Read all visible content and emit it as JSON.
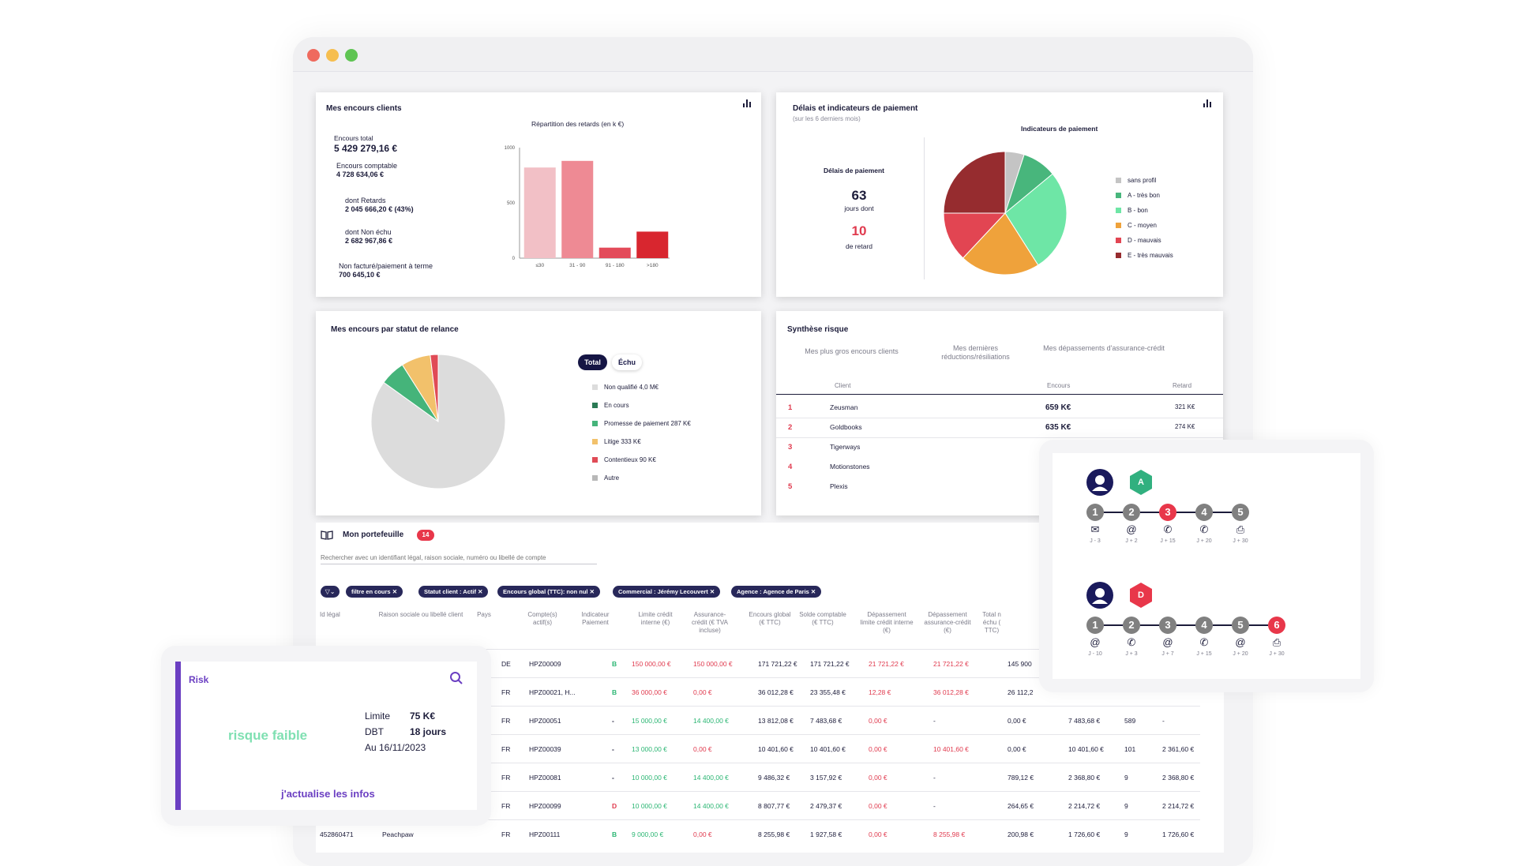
{
  "window": {
    "dot_colors": [
      "#ef6a5e",
      "#f6be4f",
      "#5fc453"
    ]
  },
  "encours": {
    "title": "Mes encours clients",
    "total_label": "Encours total",
    "total_value": "5 429 279,16 €",
    "comptable_label": "Encours comptable",
    "comptable_value": "4 728 634,06 €",
    "retards_label": "dont Retards",
    "retards_value": "2 045 666,20 € (43%)",
    "nonechu_label": "dont Non échu",
    "nonechu_value": "2 682 967,86 €",
    "nonfacture_label": "Non facturé/paiement à terme",
    "nonfacture_value": "700 645,10 €",
    "chart_title": "Répartition des retards (en k €)"
  },
  "delais": {
    "title": "Délais et indicateurs de paiement",
    "subtitle": "(sur les 6 derniers mois)",
    "left_title": "Délais de paiement",
    "days_value": "63",
    "days_label": "jours dont",
    "late_value": "10",
    "late_label": "de retard",
    "pie_title": "Indicateurs de paiement"
  },
  "relance": {
    "title": "Mes encours par statut de relance",
    "toggle_total": "Total",
    "toggle_echu": "Échu"
  },
  "synthese": {
    "title": "Synthèse risque",
    "tab1": "Mes plus gros encours clients",
    "tab2": "Mes dernières réductions/résiliations",
    "tab3": "Mes dépassements d'assurance-crédit",
    "col_client": "Client",
    "col_encours": "Encours",
    "col_retard": "Retard",
    "rows": [
      {
        "rank": "1",
        "client": "Zeusman",
        "encours": "659 K€",
        "retard": "321 K€"
      },
      {
        "rank": "2",
        "client": "Goldbooks",
        "encours": "635 K€",
        "retard": "274 K€"
      },
      {
        "rank": "3",
        "client": "Tigerways",
        "encours": "",
        "retard": ""
      },
      {
        "rank": "4",
        "client": "Motionstones",
        "encours": "",
        "retard": ""
      },
      {
        "rank": "5",
        "client": "Plexis",
        "encours": "",
        "retard": ""
      }
    ]
  },
  "portefeuille": {
    "title": "Mon portefeuille",
    "count": "14",
    "search_placeholder": "Rechercher avec un identifiant légal, raison sociale, numéro ou libellé de compte",
    "filters": [
      "filtre en cours",
      "Statut client : Actif",
      "Encours global (TTC): non nul",
      "Commercial : Jérémy Lecouvert",
      "Agence : Agence de Paris"
    ],
    "headers": [
      "Id légal",
      "Raison sociale ou libellé client",
      "Pays",
      "Compte(s) actif(s)",
      "Indicateur Paiement",
      "Limite crédit interne (€)",
      "Assurance-crédit (€ TVA incluse)",
      "Encours global (€ TTC)",
      "Solde comptable (€ TTC)",
      "Dépassement limite crédit interne (€)",
      "Dépassement assurance-crédit (€)",
      "Total n échu ( TTC)"
    ],
    "rows": [
      {
        "id": "",
        "name": "",
        "pays": "DE",
        "compte": "HPZ00009",
        "ind": "B",
        "limite": "150 000,00 €",
        "assur": "150 000,00 €",
        "encours": "171 721,22 €",
        "solde": "171 721,22 €",
        "dep1": "21 721,22 €",
        "dep2": "21 721,22 €",
        "total": "145 900",
        "c13": "",
        "c14": "",
        "c15": ""
      },
      {
        "id": "",
        "name": "",
        "pays": "FR",
        "compte": "HPZ00021, H...",
        "ind": "B",
        "limite": "36 000,00 €",
        "assur": "0,00 €",
        "encours": "36 012,28 €",
        "solde": "23 355,48 €",
        "dep1": "12,28 €",
        "dep2": "36 012,28 €",
        "total": "26 112,2",
        "c13": "",
        "c14": "",
        "c15": ""
      },
      {
        "id": "",
        "name": "",
        "pays": "FR",
        "compte": "HPZ00051",
        "ind": "-",
        "limite": "15 000,00 €",
        "assur": "14 400,00 €",
        "encours": "13 812,08 €",
        "solde": "7 483,68 €",
        "dep1": "0,00 €",
        "dep2": "-",
        "total": "0,00 €",
        "c13": "7 483,68 €",
        "c14": "589",
        "c15": "-"
      },
      {
        "id": "",
        "name": "",
        "pays": "FR",
        "compte": "HPZ00039",
        "ind": "-",
        "limite": "13 000,00 €",
        "assur": "0,00 €",
        "encours": "10 401,60 €",
        "solde": "10 401,60 €",
        "dep1": "0,00 €",
        "dep2": "10 401,60 €",
        "total": "0,00 €",
        "c13": "10 401,60 €",
        "c14": "101",
        "c15": "2 361,60 €"
      },
      {
        "id": "",
        "name": "",
        "pays": "FR",
        "compte": "HPZ00081",
        "ind": "-",
        "limite": "10 000,00 €",
        "assur": "14 400,00 €",
        "encours": "9 486,32 €",
        "solde": "3 157,92 €",
        "dep1": "0,00 €",
        "dep2": "-",
        "total": "789,12 €",
        "c13": "2 368,80 €",
        "c14": "9",
        "c15": "2 368,80 €"
      },
      {
        "id": "",
        "name": "",
        "pays": "FR",
        "compte": "HPZ00099",
        "ind": "D",
        "limite": "10 000,00 €",
        "assur": "14 400,00 €",
        "encours": "8 807,77 €",
        "solde": "2 479,37 €",
        "dep1": "0,00 €",
        "dep2": "-",
        "total": "264,65 €",
        "c13": "2 214,72 €",
        "c14": "9",
        "c15": "2 214,72 €"
      },
      {
        "id": "452860471",
        "name": "Peachpaw",
        "pays": "FR",
        "compte": "HPZ00111",
        "ind": "B",
        "limite": "9 000,00 €",
        "assur": "0,00 €",
        "encours": "8 255,98 €",
        "solde": "1 927,58 €",
        "dep1": "0,00 €",
        "dep2": "8 255,98 €",
        "total": "200,98 €",
        "c13": "1 726,60 €",
        "c14": "9",
        "c15": "1 726,60 €"
      }
    ]
  },
  "risk": {
    "title": "Risk",
    "level": "risque faible",
    "limite_label": "Limite",
    "limite_value": "75 K€",
    "dbt_label": "DBT",
    "dbt_value": "18 jours",
    "date": "Au 16/11/2023",
    "action": "j'actualise les infos"
  },
  "workflow": {
    "profile_a": "A",
    "profile_d": "D",
    "steps_a": [
      {
        "n": "1",
        "icon": "✉",
        "label": "J - 3",
        "active": false
      },
      {
        "n": "2",
        "icon": "@",
        "label": "J + 2",
        "active": false
      },
      {
        "n": "3",
        "icon": "✆",
        "label": "J + 15",
        "active": true
      },
      {
        "n": "4",
        "icon": "✆",
        "label": "J + 20",
        "active": false
      },
      {
        "n": "5",
        "icon": "⎙",
        "label": "J + 30",
        "active": false
      }
    ],
    "steps_d": [
      {
        "n": "1",
        "icon": "@",
        "label": "J - 10",
        "active": false
      },
      {
        "n": "2",
        "icon": "✆",
        "label": "J + 3",
        "active": false
      },
      {
        "n": "3",
        "icon": "@",
        "label": "J + 7",
        "active": false
      },
      {
        "n": "4",
        "icon": "✆",
        "label": "J + 15",
        "active": false
      },
      {
        "n": "5",
        "icon": "@",
        "label": "J + 20",
        "active": false
      },
      {
        "n": "6",
        "icon": "⎙",
        "label": "J + 30",
        "active": true
      }
    ]
  },
  "chart_data": [
    {
      "type": "bar",
      "title": "Répartition des retards (en k €)",
      "categories": [
        "≤30",
        "31 - 90",
        "91 - 180",
        ">180"
      ],
      "values": [
        820,
        880,
        95,
        240
      ],
      "ylim": [
        0,
        1000
      ],
      "yticks": [
        "0",
        "500",
        "1000"
      ],
      "colors": [
        "#f2c0c6",
        "#ee8a94",
        "#e34b5a",
        "#d8262f"
      ]
    },
    {
      "type": "pie",
      "title": "Indicateurs de paiement",
      "labels": [
        "sans profil",
        "A - très bon",
        "B - bon",
        "C - moyen",
        "D - mauvais",
        "E - très mauvais"
      ],
      "values": [
        5,
        9,
        27,
        21,
        13,
        25
      ],
      "colors": [
        "#c4c4c4",
        "#48b67c",
        "#6ee6a6",
        "#efa23b",
        "#e24552",
        "#962c2f"
      ]
    },
    {
      "type": "pie",
      "title": "Mes encours par statut de relance",
      "labels": [
        "Non qualifié 4,0 M€",
        "En cours",
        "Promesse de paiement 287 K€",
        "Litige 333 K€",
        "Contentieux 90 K€",
        "Autre"
      ],
      "values": [
        4000,
        0,
        287,
        333,
        90,
        0
      ],
      "colors": [
        "#dcdcdc",
        "#2a7a55",
        "#45b47a",
        "#f2c16b",
        "#e04b56",
        "#b8b8b8"
      ]
    }
  ]
}
